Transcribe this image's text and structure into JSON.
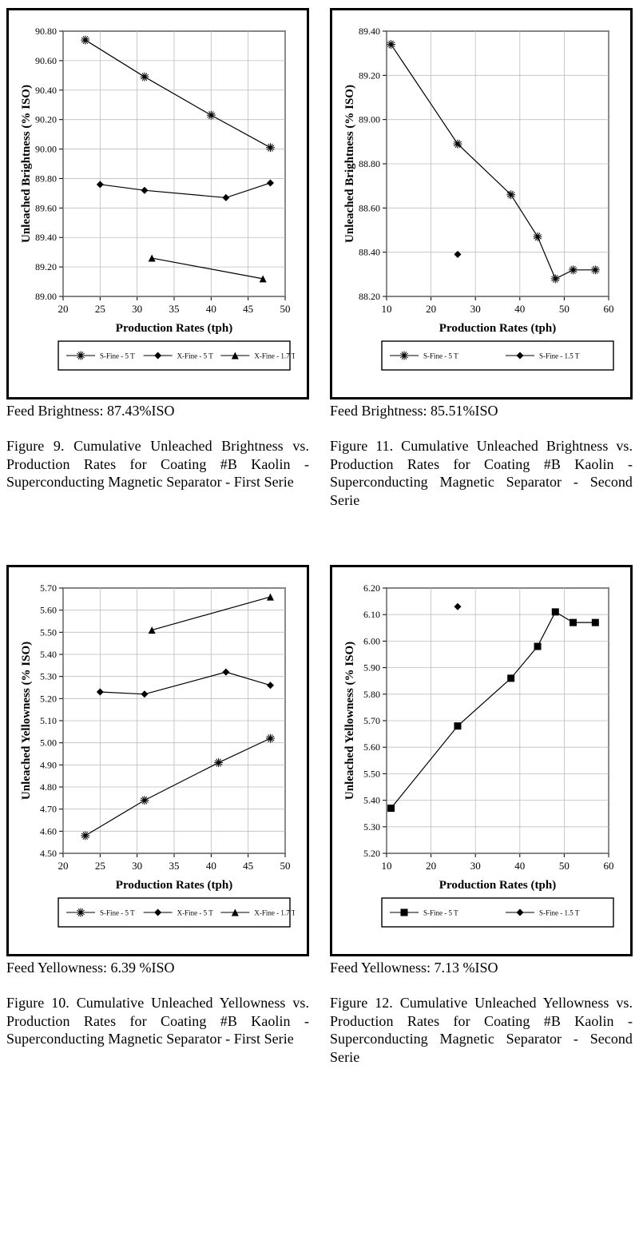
{
  "style": {
    "frame_border_color": "#000000",
    "plot_bg": "#ffffff",
    "grid_color": "#bdbdbd",
    "axis_color": "#000000",
    "text_color": "#000000",
    "axis_label_fontsize_pt": 13,
    "tick_fontsize_pt": 11,
    "legend_fontsize_pt": 8.5,
    "feed_fontsize_pt": 18,
    "caption_fontsize_pt": 18,
    "font_family": "Times New Roman"
  },
  "cells": [
    {
      "id": "fig9",
      "chart": {
        "type": "line",
        "x_label": "Production Rates (tph)",
        "y_label": "Unleached Brightness (% ISO)",
        "xlim": [
          20,
          50
        ],
        "x_ticks": [
          20,
          25,
          30,
          35,
          40,
          45,
          50
        ],
        "ylim": [
          89.0,
          90.8
        ],
        "y_ticks": [
          89.0,
          89.2,
          89.4,
          89.6,
          89.8,
          90.0,
          90.2,
          90.4,
          90.6,
          90.8
        ],
        "grid": true,
        "y_tick_format": "2dp",
        "series": [
          {
            "name": "S-Fine - 5 T",
            "label": "S-Fine - 5 T",
            "color": "#000000",
            "line_width": 1.2,
            "marker": "starburst",
            "points": [
              [
                23,
                90.74
              ],
              [
                31,
                90.49
              ],
              [
                40,
                90.23
              ],
              [
                48,
                90.01
              ]
            ]
          },
          {
            "name": "X-Fine - 5 T",
            "label": "X-Fine - 5 T",
            "color": "#000000",
            "line_width": 1.2,
            "marker": "diamond",
            "points": [
              [
                25,
                89.76
              ],
              [
                31,
                89.72
              ],
              [
                42,
                89.67
              ],
              [
                48,
                89.77
              ]
            ]
          },
          {
            "name": "X-Fine - 1.7 T",
            "label": "X-Fine - 1.7 T",
            "color": "#000000",
            "line_width": 1.2,
            "marker": "triangle",
            "points": [
              [
                32,
                89.26
              ],
              [
                47,
                89.12
              ]
            ]
          }
        ]
      },
      "feed": "Feed Brightness: 87.43%ISO",
      "caption_top": "Figure 9. Cumulative Unleached Brightness vs. Production Rates for Coating #B Kaolin -",
      "caption_last": "Superconducting Magnetic Separator - First Serie"
    },
    {
      "id": "fig11",
      "chart": {
        "type": "line",
        "x_label": "Production Rates (tph)",
        "y_label": "Unleached Brightness (% ISO)",
        "xlim": [
          10,
          60
        ],
        "x_ticks": [
          10,
          20,
          30,
          40,
          50,
          60
        ],
        "ylim": [
          88.2,
          89.4
        ],
        "y_ticks": [
          88.2,
          88.4,
          88.6,
          88.8,
          89.0,
          89.2,
          89.4
        ],
        "grid": true,
        "y_tick_format": "2dp",
        "series": [
          {
            "name": "S-Fine - 5 T",
            "label": "S-Fine - 5 T",
            "color": "#000000",
            "line_width": 1.2,
            "marker": "starburst",
            "points": [
              [
                11,
                89.34
              ],
              [
                26,
                88.89
              ],
              [
                38,
                88.66
              ],
              [
                44,
                88.47
              ],
              [
                48,
                88.28
              ],
              [
                52,
                88.32
              ],
              [
                57,
                88.32
              ]
            ]
          },
          {
            "name": "S-Fine - 1.5 T",
            "label": "S-Fine - 1.5 T",
            "color": "#000000",
            "line_width": 1.2,
            "marker": "diamond",
            "points": [
              [
                26,
                88.39
              ]
            ]
          }
        ]
      },
      "feed": "Feed Brightness: 85.51%ISO",
      "caption_top": "Figure 11. Cumulative Unleached Brightness vs. Production Rates for Coating #B Kaolin -",
      "caption_last": "Superconducting Magnetic Separator - Second Serie"
    },
    {
      "id": "fig10",
      "chart": {
        "type": "line",
        "x_label": "Production Rates (tph)",
        "y_label": "Unleached Yellowness (% ISO)",
        "xlim": [
          20,
          50
        ],
        "x_ticks": [
          20,
          25,
          30,
          35,
          40,
          45,
          50
        ],
        "ylim": [
          4.5,
          5.7
        ],
        "y_ticks": [
          4.5,
          4.6,
          4.7,
          4.8,
          4.9,
          5.0,
          5.1,
          5.2,
          5.3,
          5.4,
          5.5,
          5.6,
          5.7
        ],
        "grid": true,
        "y_tick_format": "2dp",
        "series": [
          {
            "name": "S-Fine - 5 T",
            "label": "S-Fine - 5 T",
            "color": "#000000",
            "line_width": 1.2,
            "marker": "starburst",
            "points": [
              [
                23,
                4.58
              ],
              [
                31,
                4.74
              ],
              [
                41,
                4.91
              ],
              [
                48,
                5.02
              ]
            ]
          },
          {
            "name": "X-Fine - 5 T",
            "label": "X-Fine - 5 T",
            "color": "#000000",
            "line_width": 1.2,
            "marker": "diamond",
            "points": [
              [
                25,
                5.23
              ],
              [
                31,
                5.22
              ],
              [
                42,
                5.32
              ],
              [
                48,
                5.26
              ]
            ]
          },
          {
            "name": "X-Fine - 1.7 T",
            "label": "X-Fine - 1.7 T",
            "color": "#000000",
            "line_width": 1.2,
            "marker": "triangle",
            "points": [
              [
                32,
                5.51
              ],
              [
                48,
                5.66
              ]
            ]
          }
        ]
      },
      "feed": "Feed Yellowness: 6.39 %ISO",
      "caption_top": "Figure 10. Cumulative Unleached Yellowness vs. Production Rates for Coating #B Kaolin -",
      "caption_last": "Superconducting Magnetic Separator - First Serie"
    },
    {
      "id": "fig12",
      "chart": {
        "type": "line",
        "x_label": "Production Rates (tph)",
        "y_label": "Unleached Yellowness (% ISO)",
        "xlim": [
          10,
          60
        ],
        "x_ticks": [
          10,
          20,
          30,
          40,
          50,
          60
        ],
        "ylim": [
          5.2,
          6.2
        ],
        "y_ticks": [
          5.2,
          5.3,
          5.4,
          5.5,
          5.6,
          5.7,
          5.8,
          5.9,
          6.0,
          6.1,
          6.2
        ],
        "grid": true,
        "y_tick_format": "2dp",
        "series": [
          {
            "name": "S-Fine - 5 T",
            "label": "S-Fine - 5 T",
            "color": "#000000",
            "line_width": 1.2,
            "marker": "square",
            "points": [
              [
                11,
                5.37
              ],
              [
                26,
                5.68
              ],
              [
                38,
                5.86
              ],
              [
                44,
                5.98
              ],
              [
                48,
                6.11
              ],
              [
                52,
                6.07
              ],
              [
                57,
                6.07
              ]
            ]
          },
          {
            "name": "S-Fine - 1.5 T",
            "label": "S-Fine - 1.5 T",
            "color": "#000000",
            "line_width": 1.2,
            "marker": "diamond",
            "points": [
              [
                26,
                6.13
              ]
            ]
          }
        ]
      },
      "feed": "Feed Yellowness: 7.13 %ISO",
      "caption_top": "Figure 12. Cumulative Unleached Yellowness vs. Production Rates for Coating #B Kaolin -",
      "caption_last": "Superconducting Magnetic Separator - Second Serie"
    }
  ]
}
